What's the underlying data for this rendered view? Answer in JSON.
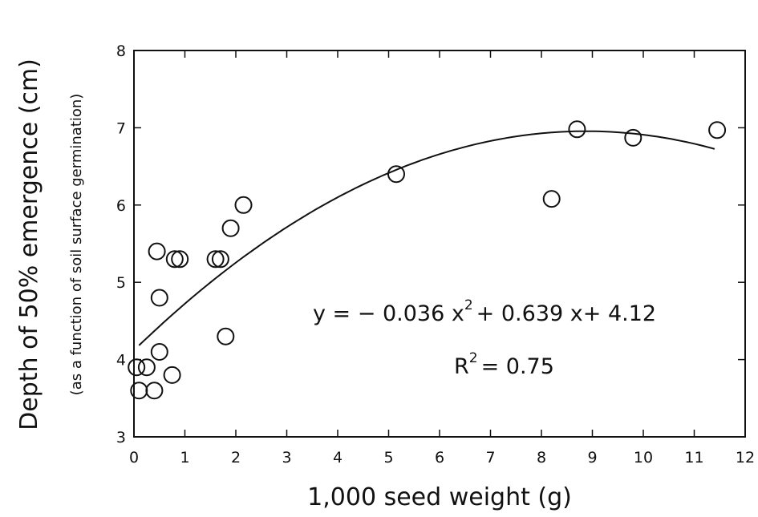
{
  "chart_data": {
    "type": "scatter",
    "title": "",
    "xlabel": "1,000 seed weight (g)",
    "ylabel": "Depth of 50% emergence (cm)",
    "ylabel_sub": "(as a function of soil surface germination)",
    "xlim": [
      0,
      12
    ],
    "ylim": [
      3,
      8
    ],
    "xticks": [
      0,
      1,
      2,
      3,
      4,
      5,
      6,
      7,
      8,
      9,
      10,
      11,
      12
    ],
    "yticks": [
      3,
      4,
      5,
      6,
      7,
      8
    ],
    "grid": false,
    "legend": "none",
    "series": [
      {
        "points": [
          {
            "x": 0.05,
            "y": 3.9
          },
          {
            "x": 0.1,
            "y": 3.6
          },
          {
            "x": 0.25,
            "y": 3.9
          },
          {
            "x": 0.4,
            "y": 3.6
          },
          {
            "x": 0.45,
            "y": 5.4
          },
          {
            "x": 0.5,
            "y": 4.1
          },
          {
            "x": 0.5,
            "y": 4.8
          },
          {
            "x": 0.75,
            "y": 3.8
          },
          {
            "x": 0.8,
            "y": 5.3
          },
          {
            "x": 0.9,
            "y": 5.3
          },
          {
            "x": 1.6,
            "y": 5.3
          },
          {
            "x": 1.7,
            "y": 5.3
          },
          {
            "x": 1.8,
            "y": 4.3
          },
          {
            "x": 1.9,
            "y": 5.7
          },
          {
            "x": 2.15,
            "y": 6.0
          },
          {
            "x": 5.15,
            "y": 6.4
          },
          {
            "x": 8.2,
            "y": 6.08
          },
          {
            "x": 8.7,
            "y": 6.98
          },
          {
            "x": 9.8,
            "y": 6.87
          },
          {
            "x": 11.45,
            "y": 6.97
          }
        ]
      }
    ],
    "fit": {
      "type": "quadratic",
      "coefficients": {
        "a": -0.036,
        "b": 0.639,
        "c": 4.12
      },
      "x_range": [
        0.1,
        11.4
      ],
      "equation_parts": {
        "lhs": "y = − 0.036 x",
        "exp": "2",
        "rhs": "+ 0.639 x+ 4.12"
      },
      "r2_parts": {
        "base": "R",
        "exp": "2",
        "rhs": "= 0.75"
      }
    }
  },
  "colors": {
    "ink": "#111111",
    "background": "#ffffff"
  }
}
